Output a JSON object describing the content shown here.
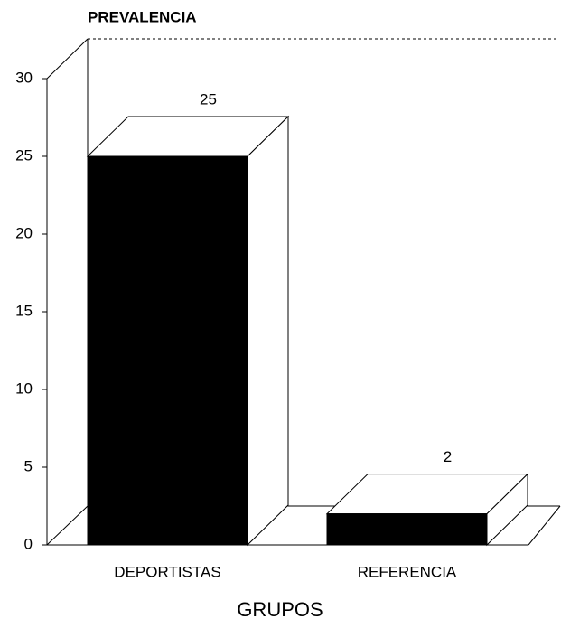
{
  "chart_data": {
    "type": "bar",
    "title": "PREVALENCIA",
    "xlabel": "GRUPOS",
    "categories": [
      "DEPORTISTAS",
      "REFERENCIA"
    ],
    "values": [
      25,
      2
    ],
    "color": "#000000",
    "ylim": [
      0,
      30
    ],
    "yticks": [
      0,
      5,
      10,
      15,
      20,
      25,
      30
    ]
  }
}
